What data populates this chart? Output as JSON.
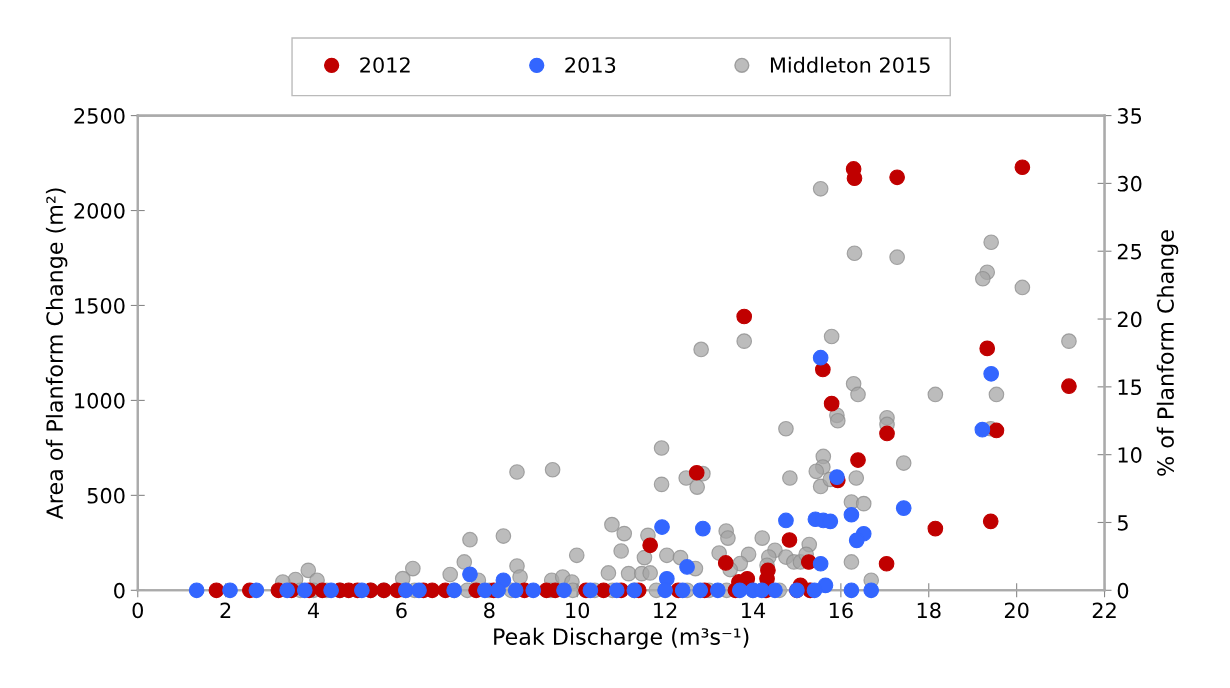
{
  "chart_data": {
    "type": "scatter",
    "xlabel": "Peak Discharge (m³s⁻¹)",
    "ylabel": "Area of Planform Change (m²)",
    "y2label": "% of Planform Change",
    "xlim": [
      0,
      22
    ],
    "xticks": [
      0,
      2,
      4,
      6,
      8,
      10,
      12,
      14,
      16,
      18,
      20,
      22
    ],
    "ylim": [
      0,
      2500
    ],
    "yticks": [
      0,
      500,
      1000,
      1500,
      2000,
      2500
    ],
    "y2lim": [
      0,
      35
    ],
    "y2ticks": [
      0,
      5,
      10,
      15,
      20,
      25,
      30,
      35
    ],
    "legend": "top",
    "grid": false,
    "marker": "circle",
    "series": [
      {
        "name": "2012",
        "color": "#c00000",
        "x": [
          16.29,
          16.31,
          17.28,
          20.13,
          13.8,
          15.59,
          15.79,
          19.33,
          21.19,
          17.05,
          19.54,
          16.39,
          15.93,
          12.72,
          18.15,
          19.41,
          14.83,
          11.66,
          17.04,
          13.38,
          15.27,
          14.34,
          14.32,
          13.87,
          13.68,
          15.08,
          1.79,
          2.55,
          3.2,
          3.5,
          3.9,
          4.2,
          4.6,
          4.8,
          5.0,
          5.3,
          5.6,
          5.9,
          6.5,
          6.7,
          7.0,
          7.7,
          8.1,
          8.8,
          9.3,
          9.5,
          10.2,
          10.6,
          11.0,
          11.4,
          12.3,
          12.9,
          13.6,
          14.3,
          15.0,
          15.3
        ],
        "values": [
          2219,
          2170,
          2175,
          2228,
          1442,
          1163,
          983,
          1274,
          1075,
          826,
          842,
          686,
          579,
          619,
          325,
          363,
          265,
          237,
          140,
          144,
          149,
          105,
          61,
          61,
          44,
          26,
          0,
          0,
          0,
          0,
          0,
          0,
          0,
          0,
          0,
          0,
          0,
          0,
          0,
          0,
          0,
          0,
          0,
          0,
          0,
          0,
          0,
          0,
          0,
          0,
          0,
          0,
          0,
          0,
          0,
          0
        ]
      },
      {
        "name": "2013",
        "color": "#3366ff",
        "x": [
          15.54,
          19.42,
          19.22,
          14.75,
          15.42,
          15.6,
          15.76,
          16.24,
          17.43,
          16.52,
          16.36,
          11.93,
          12.86,
          15.91,
          12.5,
          15.54,
          15.65,
          12.04,
          7.56,
          8.32,
          1.34,
          2.1,
          2.7,
          3.4,
          3.8,
          4.4,
          5.1,
          6.1,
          6.4,
          7.2,
          7.9,
          8.2,
          8.6,
          9.0,
          9.7,
          10.3,
          10.9,
          11.3,
          12.0,
          12.4,
          12.8,
          13.2,
          13.7,
          14.0,
          14.2,
          14.5,
          15.0,
          15.4,
          16.24,
          16.69
        ],
        "values": [
          1225,
          1140,
          846,
          368,
          374,
          368,
          363,
          398,
          433,
          298,
          263,
          333,
          325,
          596,
          123,
          140,
          26,
          61,
          84,
          53,
          0,
          0,
          0,
          0,
          0,
          0,
          0,
          0,
          0,
          0,
          0,
          0,
          0,
          0,
          0,
          0,
          0,
          0,
          0,
          0,
          0,
          0,
          0,
          0,
          0,
          0,
          0,
          0,
          0,
          0
        ]
      },
      {
        "name": "Middleton 2015",
        "color": "#a6a6a6",
        "axis": "y2",
        "x": [
          15.54,
          16.31,
          17.28,
          19.42,
          19.33,
          19.23,
          20.13,
          13.8,
          12.82,
          21.19,
          15.79,
          16.29,
          16.39,
          18.15,
          19.54,
          15.91,
          15.93,
          17.05,
          17.05,
          14.75,
          19.41,
          11.92,
          15.6,
          15.59,
          15.44,
          15.54,
          15.76,
          17.43,
          11.92,
          12.48,
          12.86,
          12.73,
          14.84,
          16.35,
          16.24,
          16.52,
          10.79,
          11.07,
          11.0,
          11.61,
          11.53,
          12.04,
          12.35,
          12.69,
          13.39,
          13.43,
          13.23,
          14.21,
          14.5,
          13.9,
          14.36,
          15.28,
          14.75,
          14.93,
          15.08,
          15.21,
          16.24,
          16.69,
          10.71,
          11.17,
          11.47,
          11.66,
          13.71,
          13.48,
          14.32,
          8.63,
          9.44,
          9.99,
          8.32,
          7.56,
          7.43,
          6.26,
          6.03,
          7.11,
          8.63,
          3.88,
          3.59,
          3.3,
          4.08,
          7.75,
          8.7,
          9.42,
          9.67,
          9.88,
          3.7,
          4.0,
          4.3,
          4.6,
          5.3,
          5.6,
          6.1,
          6.3,
          7.2,
          7.5,
          8.0,
          8.5,
          9.4,
          9.9,
          10.4,
          10.8,
          11.3,
          11.8,
          12.5,
          13.0,
          13.4,
          14.0,
          14.6,
          15.3
        ],
        "values": [
          29.6,
          24.85,
          24.56,
          25.66,
          23.45,
          22.97,
          22.33,
          18.37,
          17.76,
          18.37,
          18.71,
          15.23,
          14.44,
          14.44,
          14.44,
          12.9,
          12.5,
          12.72,
          12.23,
          11.91,
          11.91,
          10.49,
          9.87,
          9.09,
          8.77,
          7.66,
          8.18,
          9.38,
          7.81,
          8.28,
          8.6,
          7.61,
          8.28,
          8.28,
          6.51,
          6.39,
          4.84,
          4.18,
          2.9,
          4.05,
          2.41,
          2.58,
          2.41,
          1.6,
          4.37,
          3.85,
          2.75,
          3.85,
          2.95,
          2.65,
          2.45,
          3.37,
          2.45,
          2.09,
          2.09,
          2.65,
          2.09,
          0.74,
          1.28,
          1.23,
          1.23,
          1.28,
          1.97,
          1.53,
          1.84,
          8.72,
          8.89,
          2.58,
          4.0,
          3.73,
          2.09,
          1.6,
          0.86,
          1.16,
          1.79,
          1.47,
          0.79,
          0.61,
          0.74,
          0.74,
          0.98,
          0.74,
          0.98,
          0.61,
          0,
          0,
          0,
          0,
          0,
          0,
          0,
          0,
          0,
          0,
          0,
          0,
          0,
          0,
          0,
          0,
          0,
          0,
          0,
          0,
          0,
          0,
          0,
          0
        ]
      }
    ]
  }
}
